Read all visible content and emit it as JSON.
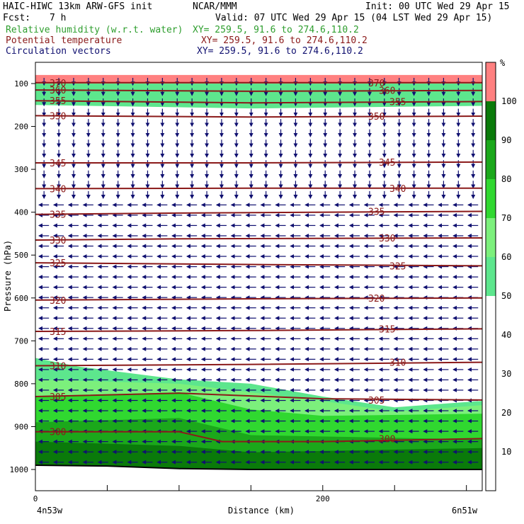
{
  "header": {
    "model": "HAIC-HIWC 13km ARW-GFS init",
    "org": "NCAR/MMM",
    "init": "Init: 00 UTC Wed 29 Apr 15",
    "fcst_label": "Fcst:",
    "fcst_value": "7 h",
    "valid": "Valid: 07 UTC Wed 29 Apr 15 (04 LST Wed 29 Apr 15)",
    "fields": [
      {
        "name": "Relative humidity (w.r.t. water)",
        "xy": "XY= 259.5, 91.6 to 274.6,110.2",
        "color": "#2e9e2e"
      },
      {
        "name": "Potential temperature",
        "xy": "XY= 259.5, 91.6 to 274.6,110.2",
        "color": "#8b1a1a"
      },
      {
        "name": "Circulation vectors",
        "xy": "XY= 259.5, 91.6 to 274.6,110.2",
        "color": "#101070"
      }
    ]
  },
  "chart_data": {
    "type": "heatmap",
    "xlabel": "Distance (km)",
    "ylabel": "Pressure (hPa)",
    "xlim": [
      0,
      311
    ],
    "ylim_hpa": [
      1050,
      70
    ],
    "x_ticks": [
      0,
      200
    ],
    "y_ticks": [
      100,
      200,
      300,
      400,
      500,
      600,
      700,
      800,
      900,
      1000
    ],
    "endpoint_left": "4n53w",
    "endpoint_right": "6n51w",
    "colorbar": {
      "unit": "%",
      "levels": [
        10,
        20,
        30,
        40,
        50,
        60,
        70,
        80,
        90,
        100
      ],
      "bands": [
        {
          "from": 0,
          "to": 50,
          "color": "#ffffff"
        },
        {
          "from": 50,
          "to": 60,
          "color": "#5de68d"
        },
        {
          "from": 60,
          "to": 70,
          "color": "#7cf07c"
        },
        {
          "from": 70,
          "to": 80,
          "color": "#30d830"
        },
        {
          "from": 80,
          "to": 90,
          "color": "#1ba81b"
        },
        {
          "from": 90,
          "to": 100,
          "color": "#0a7a0a"
        },
        {
          "from": 100,
          "to": 101,
          "color": "#ff8080"
        },
        {
          "from": 101,
          "to": 200,
          "color": "#7a0000"
        }
      ]
    },
    "theta_contours": [
      {
        "label": "370",
        "points": [
          [
            0,
            98
          ],
          [
            311,
            98
          ]
        ]
      },
      {
        "label": "360",
        "points": [
          [
            0,
            115
          ],
          [
            150,
            118
          ],
          [
            311,
            116
          ]
        ]
      },
      {
        "label": "355",
        "points": [
          [
            0,
            140
          ],
          [
            150,
            145
          ],
          [
            311,
            142
          ]
        ]
      },
      {
        "label": "350",
        "points": [
          [
            0,
            175
          ],
          [
            150,
            178
          ],
          [
            311,
            176
          ]
        ]
      },
      {
        "label": "345",
        "points": [
          [
            0,
            285
          ],
          [
            150,
            285
          ],
          [
            311,
            283
          ]
        ]
      },
      {
        "label": "340",
        "points": [
          [
            0,
            345
          ],
          [
            150,
            344
          ],
          [
            311,
            344
          ]
        ]
      },
      {
        "label": "335",
        "points": [
          [
            0,
            405
          ],
          [
            100,
            402
          ],
          [
            311,
            398
          ]
        ]
      },
      {
        "label": "330",
        "points": [
          [
            0,
            465
          ],
          [
            100,
            462
          ],
          [
            311,
            460
          ]
        ]
      },
      {
        "label": "325",
        "points": [
          [
            0,
            518
          ],
          [
            150,
            522
          ],
          [
            311,
            525
          ]
        ]
      },
      {
        "label": "320",
        "points": [
          [
            0,
            605
          ],
          [
            150,
            602
          ],
          [
            311,
            600
          ]
        ]
      },
      {
        "label": "315",
        "points": [
          [
            0,
            678
          ],
          [
            150,
            676
          ],
          [
            311,
            672
          ]
        ]
      },
      {
        "label": "310",
        "points": [
          [
            0,
            758
          ],
          [
            150,
            755
          ],
          [
            311,
            750
          ]
        ]
      },
      {
        "label": "305",
        "points": [
          [
            0,
            830
          ],
          [
            100,
            822
          ],
          [
            200,
            835
          ],
          [
            311,
            838
          ]
        ]
      },
      {
        "label": "300",
        "points": [
          [
            0,
            912
          ],
          [
            100,
            912
          ],
          [
            130,
            935
          ],
          [
            200,
            935
          ],
          [
            311,
            928
          ]
        ]
      }
    ],
    "rh_regions": [
      {
        "level": 100,
        "top": [
          [
            0,
            80
          ],
          [
            311,
            80
          ]
        ],
        "bottom": [
          [
            0,
            100
          ],
          [
            311,
            100
          ]
        ]
      },
      {
        "level": 50,
        "top": [
          [
            0,
            100
          ],
          [
            311,
            100
          ]
        ],
        "bottom": [
          [
            0,
            150
          ],
          [
            150,
            158
          ],
          [
            311,
            152
          ]
        ]
      },
      {
        "level": 50,
        "top": [
          [
            0,
            740
          ],
          [
            30,
            760
          ],
          [
            100,
            790
          ],
          [
            150,
            800
          ],
          [
            200,
            830
          ],
          [
            250,
            855
          ],
          [
            311,
            840
          ]
        ],
        "bottom": [
          [
            0,
            1050
          ],
          [
            311,
            1050
          ]
        ]
      },
      {
        "level": 60,
        "top": [
          [
            0,
            790
          ],
          [
            100,
            800
          ],
          [
            200,
            840
          ],
          [
            250,
            865
          ],
          [
            311,
            850
          ]
        ],
        "bottom": [
          [
            0,
            1050
          ],
          [
            311,
            1050
          ]
        ]
      },
      {
        "level": 70,
        "top": [
          [
            0,
            830
          ],
          [
            100,
            820
          ],
          [
            150,
            860
          ],
          [
            200,
            875
          ],
          [
            311,
            870
          ]
        ],
        "bottom": [
          [
            0,
            1050
          ],
          [
            311,
            1050
          ]
        ]
      },
      {
        "level": 80,
        "top": [
          [
            0,
            890
          ],
          [
            100,
            880
          ],
          [
            150,
            920
          ],
          [
            311,
            930
          ]
        ],
        "bottom": [
          [
            0,
            1050
          ],
          [
            311,
            1050
          ]
        ]
      },
      {
        "level": 90,
        "top": [
          [
            0,
            935
          ],
          [
            100,
            945
          ],
          [
            150,
            960
          ],
          [
            311,
            950
          ]
        ],
        "bottom": [
          [
            0,
            1050
          ],
          [
            311,
            1050
          ]
        ]
      }
    ],
    "terrain_hpa": [
      [
        0,
        990
      ],
      [
        50,
        992
      ],
      [
        100,
        998
      ],
      [
        150,
        1000
      ],
      [
        200,
        1000
      ],
      [
        250,
        1000
      ],
      [
        311,
        1000
      ]
    ],
    "wind_regime": [
      {
        "from_hpa": 90,
        "to_hpa": 360,
        "direction": "down"
      },
      {
        "from_hpa": 360,
        "to_hpa": 1000,
        "direction": "left"
      }
    ]
  }
}
